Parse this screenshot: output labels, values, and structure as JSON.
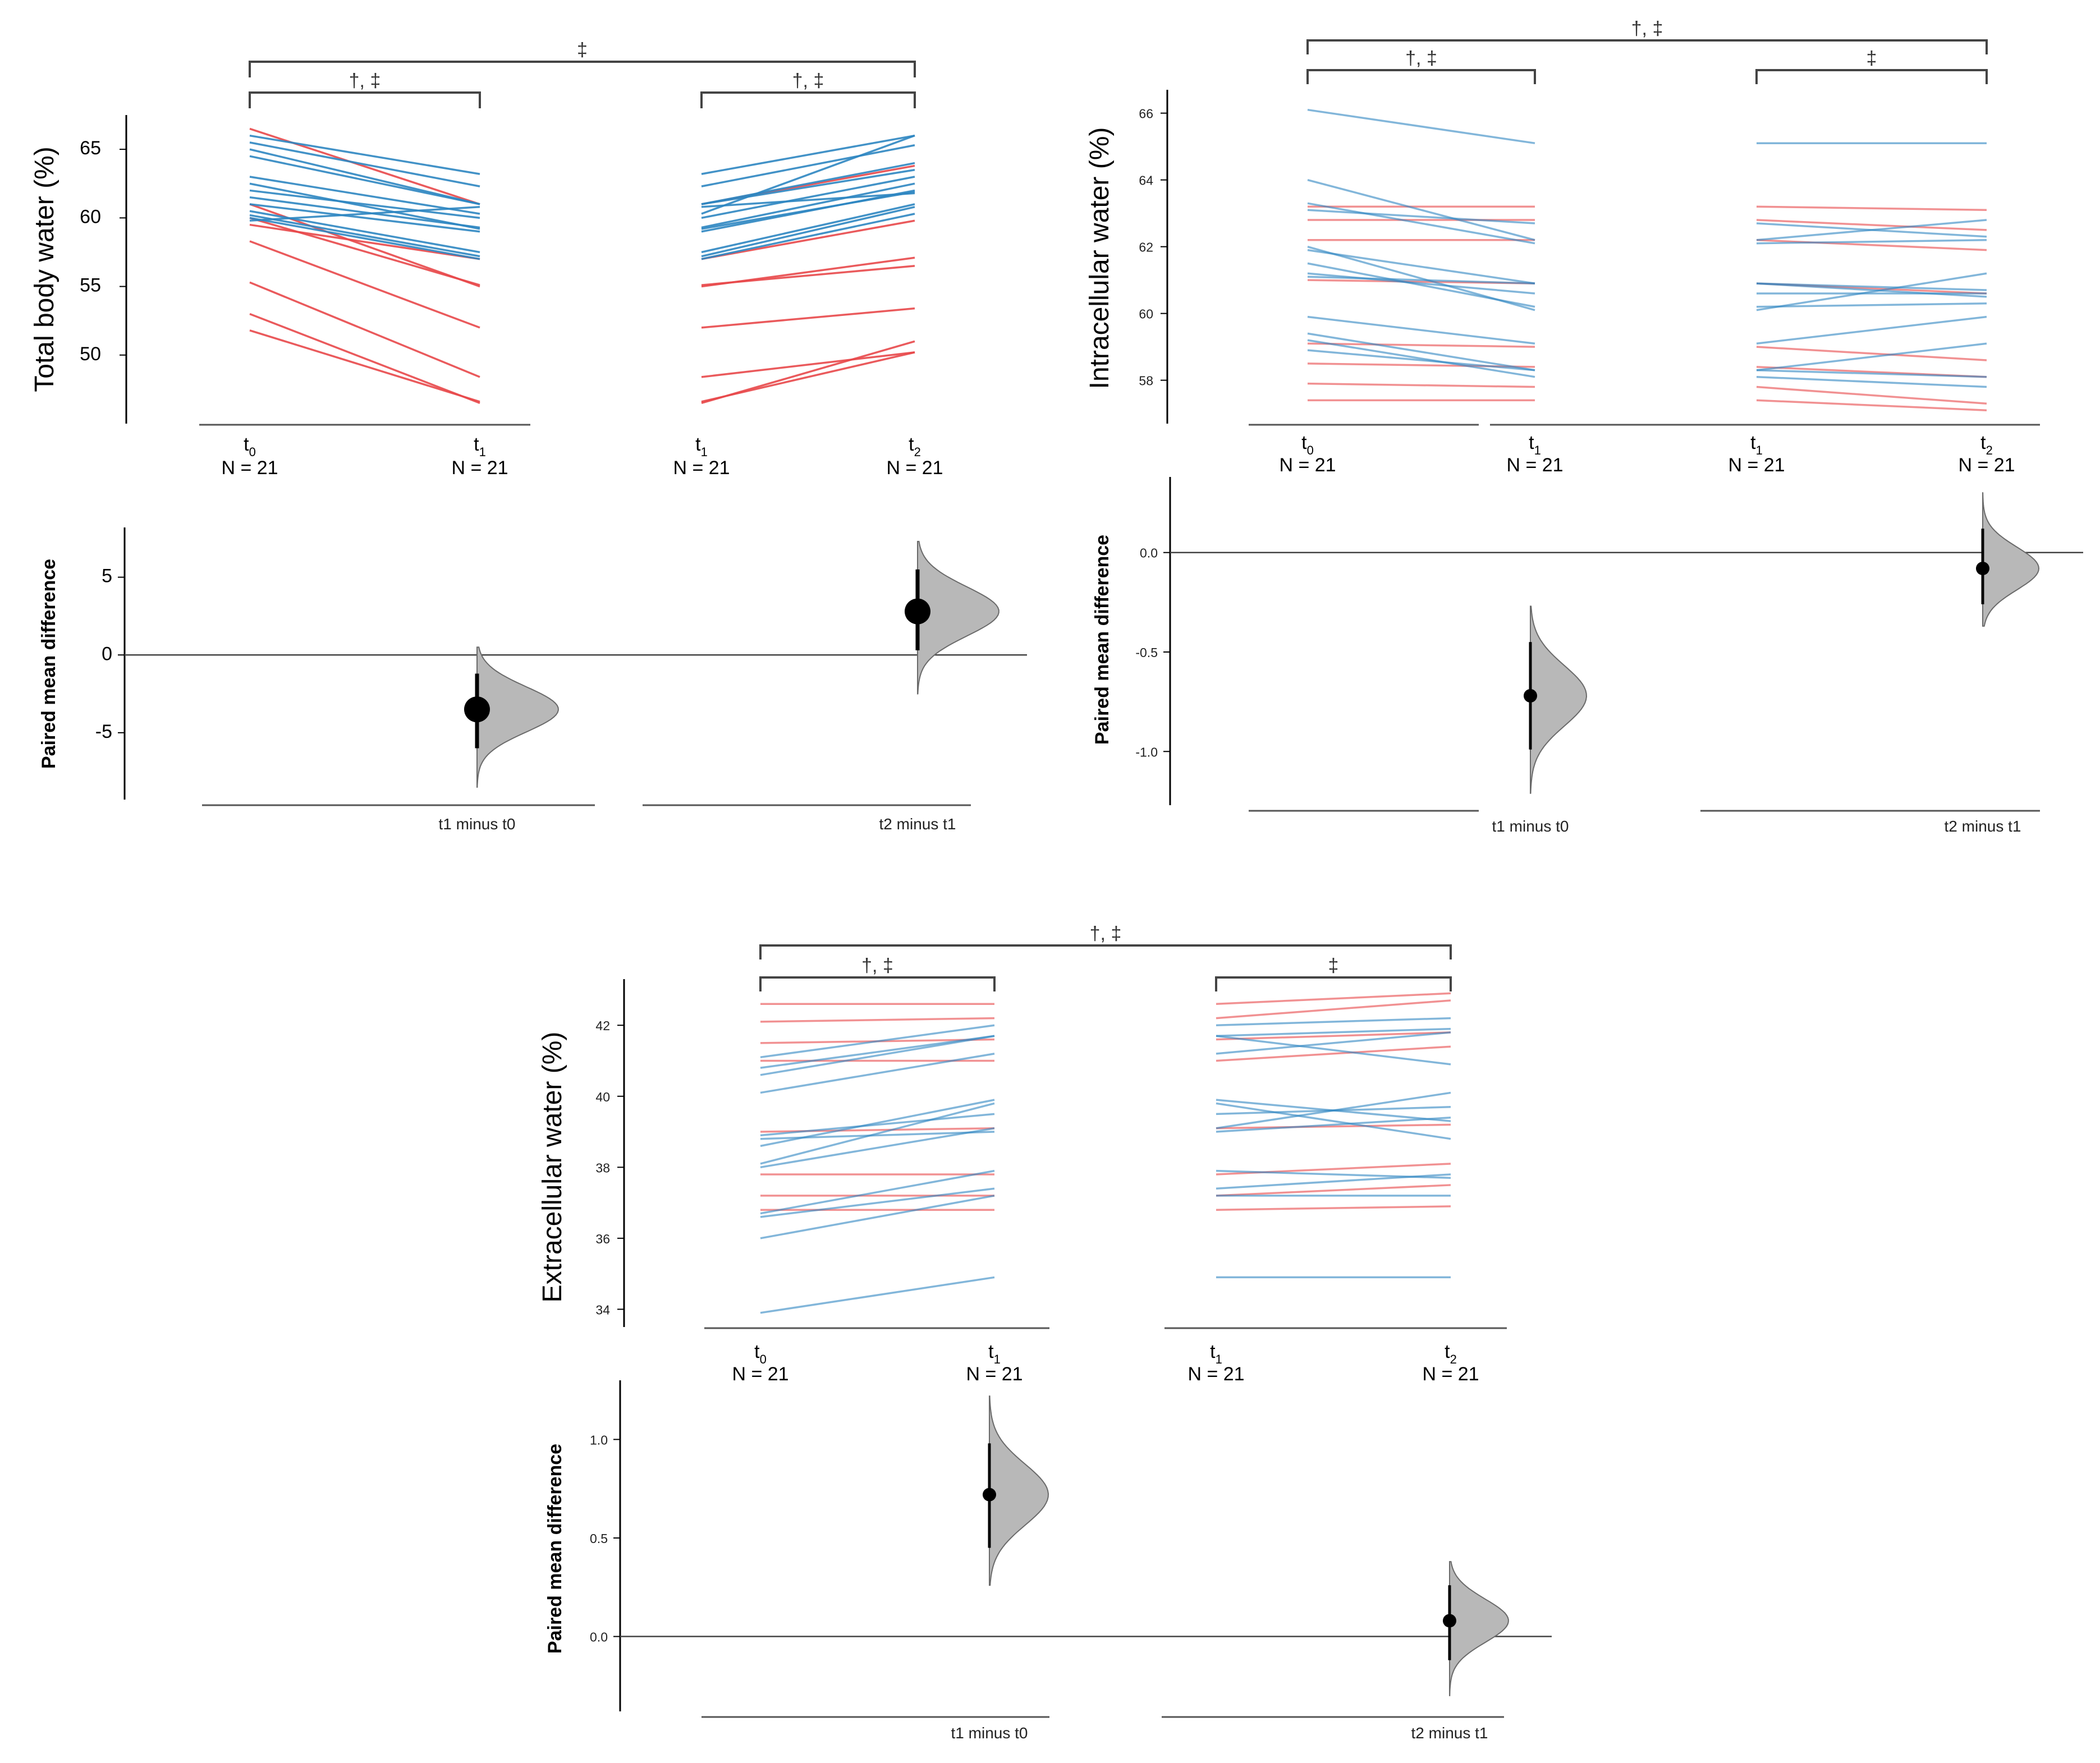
{
  "figure": {
    "group_n_label": "N = 21",
    "delta_ylabel": "Paired mean difference",
    "colors": {
      "decrease_group": "#e8484a",
      "increase_group": "#2e86c1",
      "axis": "#000000",
      "distribution": "#b8b8b8"
    }
  },
  "chart_data": [
    {
      "id": "total",
      "type": "line",
      "ylabel": "Total body water (%)",
      "yticks": [
        50,
        55,
        60,
        65
      ],
      "ylim": [
        45,
        67.5
      ],
      "line_colors": [
        "red",
        "red",
        "red",
        "red",
        "red",
        "red",
        "red",
        "red",
        "blue",
        "blue",
        "blue",
        "blue",
        "blue",
        "blue",
        "blue",
        "blue",
        "blue",
        "blue",
        "blue",
        "blue",
        "blue"
      ],
      "comparisons": [
        {
          "groups": [
            {
              "name": "t",
              "sub": "0",
              "n": "N = 21"
            },
            {
              "name": "t",
              "sub": "1",
              "n": "N = 21"
            }
          ],
          "values": [
            [
              66.5,
              61.0
            ],
            [
              61.0,
              55.0
            ],
            [
              60.0,
              55.1
            ],
            [
              58.3,
              52.0
            ],
            [
              55.3,
              48.4
            ],
            [
              53.0,
              46.5
            ],
            [
              51.8,
              46.6
            ],
            [
              59.5,
              57.0
            ],
            [
              66.0,
              63.2
            ],
            [
              65.5,
              62.3
            ],
            [
              65.0,
              61.0
            ],
            [
              64.5,
              61.0
            ],
            [
              63.0,
              60.3
            ],
            [
              62.0,
              60.0
            ],
            [
              61.5,
              59.3
            ],
            [
              61.0,
              59.0
            ],
            [
              60.5,
              57.5
            ],
            [
              60.2,
              57.2
            ],
            [
              60.0,
              57.0
            ],
            [
              59.8,
              60.8
            ],
            [
              62.5,
              59.2
            ]
          ],
          "significance": "†, ‡"
        },
        {
          "groups": [
            {
              "name": "t",
              "sub": "1",
              "n": "N = 21"
            },
            {
              "name": "t",
              "sub": "2",
              "n": "N = 21"
            }
          ],
          "values": [
            [
              61.0,
              63.8
            ],
            [
              55.0,
              57.1
            ],
            [
              55.1,
              56.5
            ],
            [
              52.0,
              53.4
            ],
            [
              48.4,
              50.2
            ],
            [
              46.5,
              51.0
            ],
            [
              46.6,
              50.2
            ],
            [
              57.0,
              59.8
            ],
            [
              63.2,
              66.0
            ],
            [
              62.3,
              65.3
            ],
            [
              61.0,
              64.0
            ],
            [
              61.0,
              63.5
            ],
            [
              60.3,
              66.0
            ],
            [
              60.0,
              63.0
            ],
            [
              59.3,
              62.5
            ],
            [
              59.0,
              62.0
            ],
            [
              57.5,
              61.0
            ],
            [
              57.2,
              60.8
            ],
            [
              57.0,
              60.3
            ],
            [
              60.8,
              61.8
            ],
            [
              59.2,
              61.9
            ]
          ],
          "significance": "†, ‡"
        }
      ],
      "overall_significance": "‡",
      "delta": {
        "yticks": [
          -5,
          0,
          5
        ],
        "ylim": [
          -9.3,
          8.2
        ],
        "items": [
          {
            "label": "t1 minus t0",
            "mean": -3.5,
            "ci": [
              -6.0,
              -1.2
            ],
            "dist_range": [
              -8.5,
              0.5
            ]
          },
          {
            "label": "t2 minus t1",
            "mean": 2.8,
            "ci": [
              0.3,
              5.5
            ],
            "dist_range": [
              -2.5,
              7.3
            ]
          }
        ]
      }
    },
    {
      "id": "intracellular",
      "type": "line",
      "ylabel": "Intracellular water (%)",
      "yticks": [
        58,
        60,
        62,
        64,
        66
      ],
      "ylim": [
        56.7,
        66.7
      ],
      "line_colors": [
        "red",
        "red",
        "red",
        "red",
        "red",
        "red",
        "red",
        "red",
        "blue",
        "blue",
        "blue",
        "blue",
        "blue",
        "blue",
        "blue",
        "blue",
        "blue",
        "blue",
        "blue",
        "blue",
        "blue"
      ],
      "comparisons": [
        {
          "groups": [
            {
              "name": "t",
              "sub": "0",
              "n": "N = 21"
            },
            {
              "name": "t",
              "sub": "1",
              "n": "N = 21"
            }
          ],
          "values": [
            [
              63.2,
              63.2
            ],
            [
              62.8,
              62.8
            ],
            [
              62.2,
              62.2
            ],
            [
              61.0,
              60.9
            ],
            [
              59.1,
              59.0
            ],
            [
              58.5,
              58.4
            ],
            [
              57.9,
              57.8
            ],
            [
              57.4,
              57.4
            ],
            [
              66.1,
              65.1
            ],
            [
              64.0,
              62.2
            ],
            [
              63.3,
              62.1
            ],
            [
              63.1,
              62.7
            ],
            [
              62.0,
              60.1
            ],
            [
              61.9,
              60.9
            ],
            [
              61.5,
              60.2
            ],
            [
              61.1,
              60.9
            ],
            [
              59.9,
              59.1
            ],
            [
              59.4,
              58.3
            ],
            [
              59.2,
              58.1
            ],
            [
              58.9,
              58.3
            ],
            [
              61.2,
              60.6
            ]
          ],
          "significance": "†, ‡"
        },
        {
          "groups": [
            {
              "name": "t",
              "sub": "1",
              "n": "N = 21"
            },
            {
              "name": "t",
              "sub": "2",
              "n": "N = 21"
            }
          ],
          "values": [
            [
              63.2,
              63.1
            ],
            [
              62.8,
              62.5
            ],
            [
              62.2,
              61.9
            ],
            [
              60.9,
              60.6
            ],
            [
              59.0,
              58.6
            ],
            [
              58.4,
              58.1
            ],
            [
              57.8,
              57.3
            ],
            [
              57.4,
              57.1
            ],
            [
              65.1,
              65.1
            ],
            [
              62.2,
              62.8
            ],
            [
              62.1,
              62.2
            ],
            [
              62.7,
              62.3
            ],
            [
              60.1,
              61.2
            ],
            [
              60.9,
              60.7
            ],
            [
              60.2,
              60.3
            ],
            [
              60.9,
              60.5
            ],
            [
              59.1,
              59.9
            ],
            [
              58.3,
              58.1
            ],
            [
              58.1,
              57.8
            ],
            [
              58.3,
              59.1
            ],
            [
              60.6,
              60.6
            ]
          ],
          "significance": "‡"
        }
      ],
      "overall_significance": "†, ‡",
      "delta": {
        "yticks": [
          -1.0,
          -0.5,
          0.0
        ],
        "ylim": [
          -1.27,
          0.38
        ],
        "items": [
          {
            "label": "t1 minus t0",
            "mean": -0.72,
            "ci": [
              -0.99,
              -0.45
            ],
            "dist_range": [
              -1.21,
              -0.27
            ]
          },
          {
            "label": "t2 minus t1",
            "mean": -0.08,
            "ci": [
              -0.26,
              0.12
            ],
            "dist_range": [
              -0.37,
              0.3
            ]
          }
        ]
      }
    },
    {
      "id": "extracellular",
      "type": "line",
      "ylabel": "Extracellular water (%)",
      "yticks": [
        34,
        36,
        38,
        40,
        42
      ],
      "ylim": [
        33.5,
        43.3
      ],
      "line_colors": [
        "red",
        "red",
        "red",
        "red",
        "red",
        "red",
        "red",
        "red",
        "blue",
        "blue",
        "blue",
        "blue",
        "blue",
        "blue",
        "blue",
        "blue",
        "blue",
        "blue",
        "blue",
        "blue",
        "blue"
      ],
      "comparisons": [
        {
          "groups": [
            {
              "name": "t",
              "sub": "0",
              "n": "N = 21"
            },
            {
              "name": "t",
              "sub": "1",
              "n": "N = 21"
            }
          ],
          "values": [
            [
              42.6,
              42.6
            ],
            [
              42.1,
              42.2
            ],
            [
              41.5,
              41.6
            ],
            [
              41.0,
              41.0
            ],
            [
              39.0,
              39.1
            ],
            [
              37.8,
              37.8
            ],
            [
              37.2,
              37.2
            ],
            [
              36.8,
              36.8
            ],
            [
              41.1,
              42.0
            ],
            [
              40.8,
              41.7
            ],
            [
              40.6,
              41.7
            ],
            [
              40.1,
              41.2
            ],
            [
              38.9,
              39.5
            ],
            [
              38.6,
              39.9
            ],
            [
              38.1,
              39.8
            ],
            [
              38.0,
              39.1
            ],
            [
              36.7,
              37.9
            ],
            [
              36.6,
              37.4
            ],
            [
              36.0,
              37.2
            ],
            [
              33.9,
              34.9
            ],
            [
              38.8,
              39.0
            ]
          ],
          "significance": "†, ‡"
        },
        {
          "groups": [
            {
              "name": "t",
              "sub": "1",
              "n": "N = 21"
            },
            {
              "name": "t",
              "sub": "2",
              "n": "N = 21"
            }
          ],
          "values": [
            [
              42.6,
              42.9
            ],
            [
              42.2,
              42.7
            ],
            [
              41.6,
              41.8
            ],
            [
              41.0,
              41.4
            ],
            [
              39.1,
              39.2
            ],
            [
              37.8,
              38.1
            ],
            [
              37.2,
              37.5
            ],
            [
              36.8,
              36.9
            ],
            [
              42.0,
              42.2
            ],
            [
              41.7,
              40.9
            ],
            [
              41.7,
              41.9
            ],
            [
              41.2,
              41.8
            ],
            [
              39.5,
              39.7
            ],
            [
              39.9,
              39.3
            ],
            [
              39.8,
              38.8
            ],
            [
              39.1,
              40.1
            ],
            [
              37.9,
              37.7
            ],
            [
              37.4,
              37.8
            ],
            [
              37.2,
              37.2
            ],
            [
              34.9,
              34.9
            ],
            [
              39.0,
              39.4
            ]
          ],
          "significance": "‡"
        }
      ],
      "overall_significance": "†, ‡",
      "delta": {
        "yticks": [
          0.0,
          0.5,
          1.0
        ],
        "ylim": [
          -0.38,
          1.3
        ],
        "items": [
          {
            "label": "t1 minus t0",
            "mean": 0.72,
            "ci": [
              0.45,
              0.98
            ],
            "dist_range": [
              0.26,
              1.22
            ]
          },
          {
            "label": "t2 minus t1",
            "mean": 0.08,
            "ci": [
              -0.12,
              0.26
            ],
            "dist_range": [
              -0.3,
              0.38
            ]
          }
        ]
      }
    }
  ]
}
